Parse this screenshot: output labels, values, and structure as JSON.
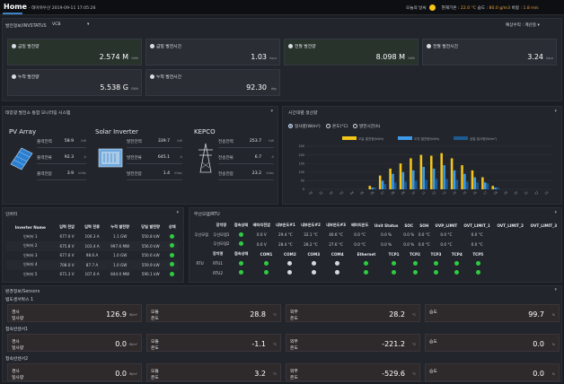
{
  "header": {
    "home": "Home",
    "subtitle": "- 태아야우산 2019-09-11 17:05:26",
    "weather_label": "오늘의 날씨",
    "temp_label": "현재기온 :",
    "temp_value": "22.0 °C",
    "humidity_label": "습도 :",
    "humidity_value": "80.0 g/m3",
    "wind_label": "바람 :",
    "wind_value": "1.8 m/s"
  },
  "status": {
    "title": "발전정보/INVSTATUS",
    "select": "VCB",
    "right_select": "예상수익 : 계산중",
    "kpis": [
      {
        "label": "금일 발전량",
        "value": "2.574 M",
        "unit": "kWh"
      },
      {
        "label": "금일 발전시간",
        "value": "1.03",
        "unit": "hour"
      },
      {
        "label": "전월 발전량",
        "value": "8.098 M",
        "unit": "kWh"
      },
      {
        "label": "전월 발전시간",
        "value": "3.24",
        "unit": "hour"
      },
      {
        "label": "누적 발전량",
        "value": "5.538 G",
        "unit": "GWh"
      },
      {
        "label": "누적 발전시간",
        "value": "92.30",
        "unit": "day"
      }
    ]
  },
  "monitor": {
    "title": "태양광 발전소 통합 모니터링 시스템",
    "pv_title": "PV Array",
    "pv_rows": [
      {
        "k": "출력전력",
        "v": "58.9",
        "u": "kW"
      },
      {
        "k": "출력전류",
        "v": "92.3",
        "u": "A"
      },
      {
        "k": "출력전압",
        "v": "3.9",
        "u": "kVdc"
      }
    ],
    "inv_title": "Solar Inverter",
    "inv_rows": [
      {
        "k": "발전전력",
        "v": "339.7",
        "u": "kW"
      },
      {
        "k": "발전전류",
        "v": "645.1",
        "u": "A"
      },
      {
        "k": "발전전압",
        "v": "1.4",
        "u": "kVac"
      }
    ],
    "kepco_title": "KEPCO",
    "kepco_rows": [
      {
        "k": "전송전력",
        "v": "253.7",
        "u": "kW"
      },
      {
        "k": "전송전류",
        "v": "6.7",
        "u": "A"
      },
      {
        "k": "전송전압",
        "v": "23.2",
        "u": "kVac"
      }
    ]
  },
  "timechart": {
    "title": "시간대별 생산량",
    "radios": [
      "일사량(W/m²)",
      "온도(°C)",
      "발전시간(h)"
    ],
    "legend": [
      "오늘 발전량(kWh)",
      "오전 발전량(kWh)",
      "금일 일사량(W/m²)"
    ]
  },
  "chart_data": {
    "type": "bar",
    "categories": [
      "00",
      "01",
      "02",
      "03",
      "04",
      "05",
      "06",
      "07",
      "08",
      "09",
      "10",
      "11",
      "12",
      "13",
      "14",
      "15",
      "16",
      "17",
      "18",
      "19",
      "20",
      "21",
      "22",
      "23"
    ],
    "series": [
      {
        "name": "오늘 발전량(kWh)",
        "values": [
          0,
          0,
          0,
          0,
          0,
          0,
          20,
          80,
          120,
          150,
          180,
          200,
          195,
          210,
          180,
          140,
          110,
          70,
          20,
          0,
          0,
          0,
          0,
          0
        ]
      },
      {
        "name": "오전 발전량(kWh)",
        "values": [
          0,
          0,
          0,
          0,
          0,
          0,
          10,
          50,
          90,
          100,
          110,
          130,
          120,
          140,
          110,
          90,
          70,
          40,
          10,
          0,
          0,
          0,
          0,
          0
        ]
      },
      {
        "name": "금일 일사량(W/m²)",
        "values": [
          0,
          0,
          0,
          0,
          0,
          0,
          10,
          30,
          40,
          45,
          50,
          55,
          60,
          60,
          55,
          45,
          40,
          35,
          10,
          0,
          0,
          0,
          0,
          0
        ]
      }
    ],
    "colors": [
      "#f5c518",
      "#3d9be9",
      "#1d5a91"
    ],
    "ylim": [
      0,
      250
    ],
    "grid": true,
    "legend_position": "top"
  },
  "inverter": {
    "title": "인버터",
    "headers": [
      "Inverter Name",
      "입력 전압",
      "입력 전류",
      "누적 발전량",
      "당일 발전량",
      "상태"
    ],
    "rows": [
      [
        "인버터 1",
        "677.0 V",
        "100.3 A",
        "1.1 GW",
        "550.8 kW"
      ],
      [
        "인버터 2",
        "675.8 V",
        "103.4 A",
        "997.6 MW",
        "556.0 kW"
      ],
      [
        "인버터 3",
        "677.6 V",
        "98.6 A",
        "1.0 GW",
        "550.6 kW"
      ],
      [
        "인버터 4",
        "708.0 V",
        "87.7 A",
        "1.0 GW",
        "559.9 kW"
      ],
      [
        "인버터 5",
        "671.3 V",
        "107.0 A",
        "844.0 MW",
        "590.1 kW"
      ]
    ]
  },
  "rtu": {
    "title": "무선모뎀/RTU",
    "headers1": [
      "장치명",
      "접속상태",
      "배터리전압",
      "내부온도#1",
      "내부온도#2",
      "내부온도#3",
      "배터리온도",
      "Unit Status",
      "SOC",
      "SOH",
      "UVP_LIMIT",
      "OVT_LIMIT_1",
      "OVT_LIMIT_2",
      "OVT_LIMIT_3"
    ],
    "modem_group": "무선모뎀",
    "modem_rows": [
      [
        "무선모뎀1",
        "0.0 V",
        "29.4 °C",
        "32.1 °C",
        "40.6 °C",
        "0.0 °C",
        "0.0 %",
        "0.0 %",
        "0.0 °C",
        "0.0 °C",
        "0.0 °C"
      ],
      [
        "무선모뎀2",
        "0.0 V",
        "28.4 °C",
        "28.2 °C",
        "27.6 °C",
        "0.0 °C",
        "0.0 %",
        "0.0 %",
        "0.0 °C",
        "0.0 °C",
        "0.0 °C"
      ]
    ],
    "rtu_group": "RTU",
    "headers2": [
      "장치명",
      "접속상태",
      "COM1",
      "COM2",
      "COM3",
      "COM4",
      "Ethernet",
      "TCP1",
      "TCP2",
      "TCP3",
      "TCP4",
      "TCP5"
    ],
    "rtu_rows": [
      "RTU1",
      "RTU2"
    ]
  },
  "sensors": {
    "title": "환경정보/Sensors",
    "groups": [
      {
        "name": "범도센서박스 1",
        "cards": [
          {
            "l1": "경사",
            "l2": "일사량",
            "value": "126.9",
            "unit": "W/m²"
          },
          {
            "l1": "모듈",
            "l2": "온도",
            "value": "28.8",
            "unit": "°C"
          },
          {
            "l1": "외부",
            "l2": "온도",
            "value": "28.2",
            "unit": "°C"
          },
          {
            "l1": "습도",
            "l2": "",
            "value": "99.7",
            "unit": "%"
          }
        ]
      },
      {
        "name": "접속반센서1",
        "cards": [
          {
            "l1": "경사",
            "l2": "일사량",
            "value": "0.0",
            "unit": "W/m²"
          },
          {
            "l1": "모듈",
            "l2": "온도",
            "value": "-1.1",
            "unit": "°C"
          },
          {
            "l1": "외부",
            "l2": "온도",
            "value": "-221.2",
            "unit": "°C"
          },
          {
            "l1": "습도",
            "l2": "",
            "value": "0.0",
            "unit": "%"
          }
        ]
      },
      {
        "name": "접속반센서2",
        "cards": [
          {
            "l1": "경사",
            "l2": "일사량",
            "value": "0.0",
            "unit": "W/m²"
          },
          {
            "l1": "모듈",
            "l2": "온도",
            "value": "3.2",
            "unit": "°C"
          },
          {
            "l1": "외부",
            "l2": "온도",
            "value": "-529.6",
            "unit": "°C"
          },
          {
            "l1": "습도",
            "l2": "",
            "value": "0.0",
            "unit": "%"
          }
        ]
      }
    ]
  }
}
